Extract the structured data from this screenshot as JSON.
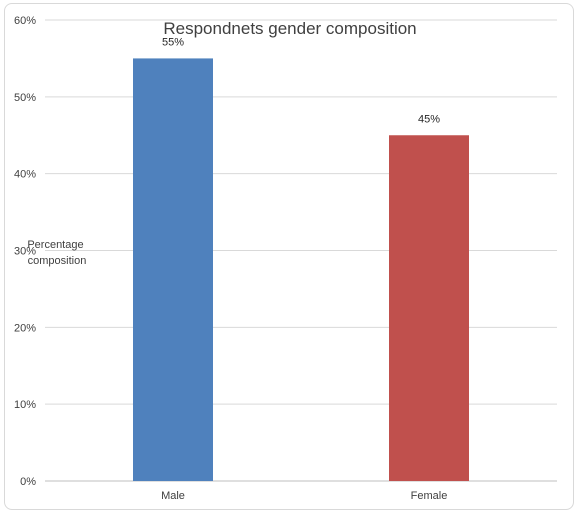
{
  "chart_data": {
    "type": "bar",
    "title": "Respondnets gender composition",
    "xlabel": "",
    "ylabel": "Percentage composition",
    "ylabel_lines": [
      "Percentage",
      "composition"
    ],
    "categories": [
      "Male",
      "Female"
    ],
    "values": [
      55,
      45
    ],
    "data_labels": [
      "55%",
      "45%"
    ],
    "colors": [
      "#4f81bd",
      "#c0504d"
    ],
    "ylim": [
      0,
      60
    ],
    "yticks": [
      0,
      10,
      20,
      30,
      40,
      50,
      60
    ],
    "ytick_labels": [
      "0%",
      "10%",
      "20%",
      "30%",
      "40%",
      "50%",
      "60%"
    ],
    "grid": true,
    "legend": false
  }
}
